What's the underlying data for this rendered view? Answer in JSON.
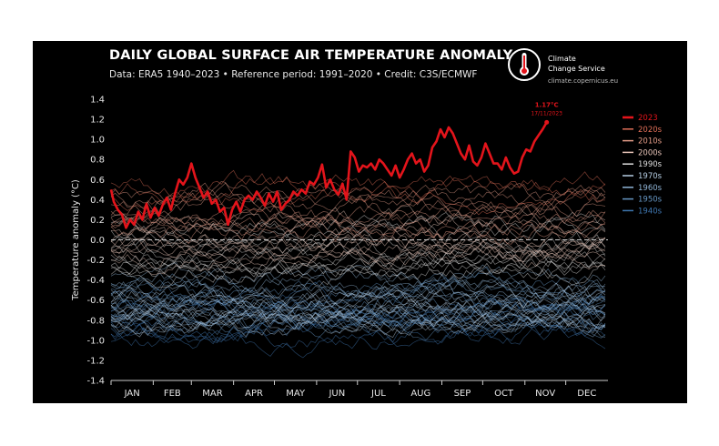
{
  "header": {
    "title": "DAILY GLOBAL SURFACE AIR TEMPERATURE ANOMALY",
    "subtitle": "Data: ERA5 1940–2023 • Reference period: 1991–2020 • Credit: C3S/ECMWF"
  },
  "logo": {
    "line1": "Climate",
    "line2": "Change Service",
    "url": "climate.copernicus.eu",
    "icon": "thermometer-globe-icon"
  },
  "colors": {
    "background": "#000000",
    "highlight_2023": "#e3141b",
    "zero_line": "#cccccc",
    "decades": {
      "2020s": "#e06f58",
      "2010s": "#e49d88",
      "2000s": "#e8c4b8",
      "1990s": "#dddddd",
      "1970s": "#b6cde3",
      "1960s": "#8fb4d6",
      "1950s": "#6697c4",
      "1940s": "#3f77b1"
    }
  },
  "chart_data": {
    "type": "line",
    "title": "DAILY GLOBAL SURFACE AIR TEMPERATURE ANOMALY",
    "xlabel": "",
    "ylabel": "Temperature anomaly (°C)",
    "ylim": [
      -1.4,
      1.4
    ],
    "yticks": [
      1.4,
      1.2,
      1.0,
      0.8,
      0.6,
      0.4,
      0.2,
      0.0,
      -0.2,
      -0.4,
      -0.6,
      -0.8,
      -1.0,
      -1.2,
      -1.4
    ],
    "ytick_labels": [
      "1.4",
      "1.2",
      "1.0",
      "0.8",
      "0.6",
      "0.4",
      "0.2",
      "0.0",
      "-0.2",
      "-0.4",
      "-0.6",
      "-0.8",
      "-1.0",
      "-1.2",
      "-1.4"
    ],
    "x_months": [
      "JAN",
      "FEB",
      "MAR",
      "APR",
      "MAY",
      "JUN",
      "JUL",
      "AUG",
      "SEP",
      "OCT",
      "NOV",
      "DEC"
    ],
    "xlim": [
      1,
      366
    ],
    "legend_position": "right",
    "legend": [
      "2023",
      "2020s",
      "2010s",
      "2000s",
      "1990s",
      "1970s",
      "1960s",
      "1950s",
      "1940s"
    ],
    "annotation": {
      "value_label": "1.17°C",
      "date_label": "17/11/2023",
      "x": 321,
      "y": 1.17
    },
    "series_2023": {
      "name": "2023",
      "x": [
        1,
        3,
        6,
        9,
        12,
        15,
        18,
        21,
        24,
        27,
        30,
        33,
        36,
        39,
        42,
        45,
        48,
        51,
        54,
        57,
        60,
        63,
        66,
        69,
        72,
        75,
        78,
        81,
        84,
        87,
        90,
        93,
        96,
        99,
        102,
        105,
        108,
        111,
        114,
        117,
        120,
        123,
        126,
        129,
        132,
        135,
        138,
        141,
        144,
        147,
        150,
        153,
        156,
        159,
        162,
        165,
        168,
        171,
        174,
        177,
        180,
        183,
        186,
        189,
        192,
        195,
        198,
        201,
        204,
        207,
        210,
        213,
        216,
        219,
        222,
        225,
        228,
        231,
        234,
        237,
        240,
        243,
        246,
        249,
        252,
        255,
        258,
        261,
        264,
        267,
        270,
        273,
        276,
        279,
        282,
        285,
        288,
        291,
        294,
        297,
        300,
        303,
        306,
        309,
        312,
        315,
        318,
        321
      ],
      "values": [
        0.5,
        0.38,
        0.3,
        0.25,
        0.12,
        0.2,
        0.15,
        0.28,
        0.2,
        0.36,
        0.22,
        0.32,
        0.24,
        0.35,
        0.42,
        0.3,
        0.46,
        0.6,
        0.55,
        0.62,
        0.76,
        0.62,
        0.52,
        0.42,
        0.48,
        0.36,
        0.4,
        0.28,
        0.32,
        0.15,
        0.3,
        0.38,
        0.28,
        0.4,
        0.44,
        0.4,
        0.48,
        0.42,
        0.34,
        0.46,
        0.38,
        0.48,
        0.3,
        0.36,
        0.4,
        0.48,
        0.44,
        0.5,
        0.46,
        0.58,
        0.55,
        0.62,
        0.75,
        0.52,
        0.6,
        0.5,
        0.45,
        0.56,
        0.4,
        0.88,
        0.82,
        0.68,
        0.74,
        0.72,
        0.76,
        0.7,
        0.8,
        0.76,
        0.7,
        0.64,
        0.74,
        0.62,
        0.7,
        0.8,
        0.86,
        0.76,
        0.8,
        0.68,
        0.74,
        0.92,
        0.98,
        1.1,
        1.02,
        1.12,
        1.06,
        0.96,
        0.86,
        0.8,
        0.94,
        0.78,
        0.74,
        0.82,
        0.96,
        0.86,
        0.76,
        0.76,
        0.7,
        0.82,
        0.72,
        0.66,
        0.68,
        0.82,
        0.9,
        0.88,
        0.98,
        1.04,
        1.1,
        1.17
      ]
    },
    "historical_series": [
      {
        "name": "1940s",
        "offset": -0.76,
        "count": 10
      },
      {
        "name": "1950s",
        "offset": -0.68,
        "count": 10
      },
      {
        "name": "1960s",
        "offset": -0.62,
        "count": 10
      },
      {
        "name": "1970s",
        "offset": -0.6,
        "count": 10
      },
      {
        "name": "1990s",
        "offset": -0.1,
        "count": 10
      },
      {
        "name": "2000s",
        "offset": 0.0,
        "count": 10
      },
      {
        "name": "2010s",
        "offset": 0.22,
        "count": 10
      },
      {
        "name": "2020s",
        "offset": 0.4,
        "count": 3
      }
    ]
  }
}
